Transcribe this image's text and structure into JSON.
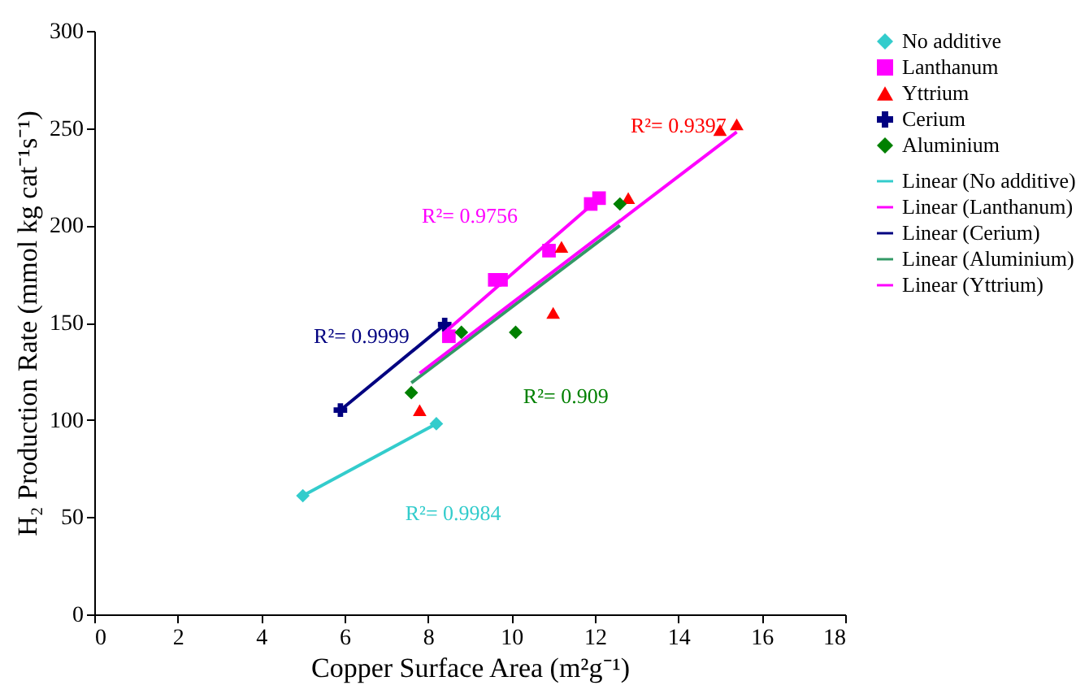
{
  "chart_data": {
    "type": "scatter",
    "xlabel": "Copper Surface Area (m²g⁻¹)",
    "ylabel": "H₂ Production Rate (mmol kg cat⁻¹s⁻¹)",
    "xlim": [
      0,
      18
    ],
    "xticks": [
      0,
      2,
      4,
      6,
      8,
      10,
      12,
      14,
      16,
      18
    ],
    "ylim": [
      0,
      300
    ],
    "yticks": [
      0,
      50,
      100,
      150,
      200,
      250,
      300
    ],
    "grid": false,
    "legend": "right",
    "series": [
      {
        "name": "No additive",
        "marker": "diamond",
        "color": "#33cccc",
        "x": [
          5.0,
          8.2
        ],
        "values": [
          61,
          98
        ]
      },
      {
        "name": "Lanthanum",
        "marker": "square",
        "color": "#ff00ff",
        "x": [
          8.5,
          9.6,
          9.75,
          10.9,
          11.9,
          12.1
        ],
        "values": [
          143,
          172,
          172,
          187,
          211,
          214
        ]
      },
      {
        "name": "Yttrium",
        "marker": "triangle",
        "color": "#ff0000",
        "x": [
          7.8,
          11.0,
          11.2,
          12.8,
          15.0,
          15.4
        ],
        "values": [
          105,
          155,
          189,
          214,
          249,
          252
        ]
      },
      {
        "name": "Cerium",
        "marker": "cross",
        "color": "#000080",
        "x": [
          5.9,
          8.4
        ],
        "values": [
          105,
          149
        ]
      },
      {
        "name": "Aluminium",
        "marker": "diamond",
        "color": "#008000",
        "x": [
          7.6,
          8.8,
          10.1,
          12.6
        ],
        "values": [
          114,
          145,
          145,
          211
        ]
      },
      {
        "name": "Linear (No additive)",
        "type": "line",
        "color": "#33cccc",
        "x": [
          5.0,
          8.2
        ],
        "values": [
          61,
          98
        ]
      },
      {
        "name": "Linear (Lanthanum)",
        "type": "line",
        "color": "#ff00ff",
        "x": [
          8.4,
          12.0
        ],
        "values": [
          145,
          212
        ]
      },
      {
        "name": "Linear (Cerium)",
        "type": "line",
        "color": "#000080",
        "x": [
          5.9,
          8.4
        ],
        "values": [
          105,
          149
        ]
      },
      {
        "name": "Linear (Aluminium)",
        "type": "line",
        "color": "#339966",
        "x": [
          7.6,
          12.6
        ],
        "values": [
          119,
          200
        ]
      },
      {
        "name": "Linear (Yttrium)",
        "type": "line",
        "color": "#ff00ff",
        "x": [
          7.8,
          15.4
        ],
        "values": [
          124,
          248
        ]
      }
    ],
    "annotations": [
      "R²= 0.9984",
      "R²= 0.9756",
      "R²= 0.9397",
      "R²= 0.9999",
      "R²= 0.909"
    ]
  }
}
